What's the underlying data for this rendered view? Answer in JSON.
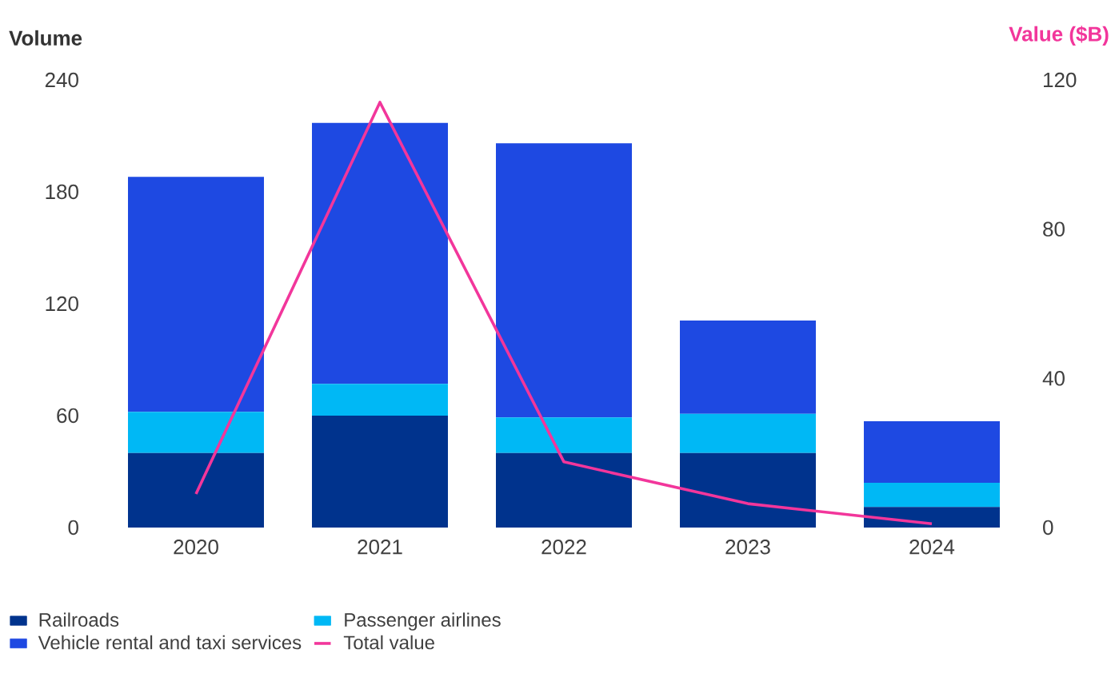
{
  "chart_data": {
    "type": "bar",
    "stacked": true,
    "categories": [
      "2020",
      "2021",
      "2022",
      "2023",
      "2024"
    ],
    "series": [
      {
        "name": "Railroads",
        "color": "#00338d",
        "values": [
          40,
          60,
          40,
          40,
          11
        ]
      },
      {
        "name": "Passenger airlines",
        "color": "#00b8f5",
        "values": [
          22,
          17,
          19,
          21,
          13
        ]
      },
      {
        "name": "Vehicle rental and taxi services",
        "color": "#1e49e2",
        "values": [
          126,
          140,
          147,
          50,
          33
        ]
      },
      {
        "name": "Total value",
        "type": "line",
        "axis": "y2",
        "color": "#f2369b",
        "values": [
          9,
          114,
          17.6,
          6.4,
          1
        ]
      }
    ],
    "ylabel": "Volume",
    "y2label": "Value ($B)",
    "ylim": [
      0,
      240
    ],
    "yticks": [
      0,
      60,
      120,
      180,
      240
    ],
    "y2lim": [
      0,
      120
    ],
    "y2ticks": [
      0,
      40,
      80,
      120
    ],
    "legend": "bottom"
  }
}
